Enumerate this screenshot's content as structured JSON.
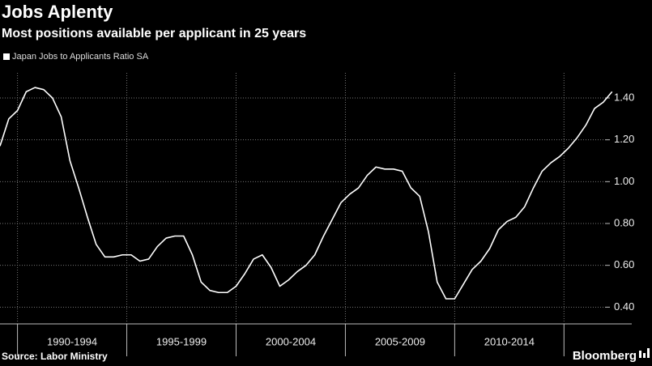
{
  "chart_data": {
    "type": "line",
    "title": "Jobs Aplenty",
    "subtitle": "Most positions available per applicant in 25 years",
    "source": "Source: Labor Ministry",
    "brand": "Bloomberg",
    "grid": true,
    "legend": "top-left",
    "x": [
      1989.2,
      1989.6,
      1990.0,
      1990.4,
      1990.8,
      1991.2,
      1991.6,
      1992.0,
      1992.4,
      1992.8,
      1993.2,
      1993.6,
      1994.0,
      1994.4,
      1994.8,
      1995.2,
      1995.6,
      1996.0,
      1996.4,
      1996.8,
      1997.2,
      1997.6,
      1998.0,
      1998.4,
      1998.8,
      1999.2,
      1999.6,
      2000.0,
      2000.4,
      2000.8,
      2001.2,
      2001.6,
      2002.0,
      2002.4,
      2002.8,
      2003.2,
      2003.6,
      2004.0,
      2004.4,
      2004.8,
      2005.2,
      2005.6,
      2006.0,
      2006.4,
      2006.8,
      2007.2,
      2007.6,
      2008.0,
      2008.4,
      2008.8,
      2009.2,
      2009.6,
      2010.0,
      2010.4,
      2010.8,
      2011.2,
      2011.6,
      2012.0,
      2012.4,
      2012.8,
      2013.2,
      2013.6,
      2014.0,
      2014.4,
      2014.8,
      2015.2,
      2015.6,
      2016.0,
      2016.4,
      2016.8,
      2017.2
    ],
    "series": [
      {
        "name": "Japan Jobs to Applicants Ratio SA",
        "color": "#ffffff",
        "values": [
          1.17,
          1.3,
          1.34,
          1.43,
          1.45,
          1.44,
          1.4,
          1.31,
          1.1,
          0.97,
          0.83,
          0.7,
          0.64,
          0.64,
          0.65,
          0.65,
          0.62,
          0.63,
          0.69,
          0.73,
          0.74,
          0.74,
          0.65,
          0.52,
          0.48,
          0.47,
          0.47,
          0.5,
          0.56,
          0.63,
          0.65,
          0.59,
          0.5,
          0.53,
          0.57,
          0.6,
          0.65,
          0.74,
          0.82,
          0.9,
          0.94,
          0.97,
          1.03,
          1.07,
          1.06,
          1.06,
          1.05,
          0.97,
          0.93,
          0.76,
          0.52,
          0.44,
          0.44,
          0.51,
          0.58,
          0.62,
          0.68,
          0.77,
          0.81,
          0.83,
          0.88,
          0.97,
          1.05,
          1.09,
          1.12,
          1.16,
          1.21,
          1.27,
          1.35,
          1.38,
          1.43
        ]
      }
    ],
    "xlim": [
      1989.2,
      2018.1
    ],
    "xticks": [
      1990,
      1995,
      2000,
      2005,
      2010,
      2015
    ],
    "periods": [
      {
        "label": "1990-1994",
        "start": 1990,
        "end": 1995
      },
      {
        "label": "1995-1999",
        "start": 1995,
        "end": 2000
      },
      {
        "label": "2000-2004",
        "start": 2000,
        "end": 2005
      },
      {
        "label": "2005-2009",
        "start": 2005,
        "end": 2010
      },
      {
        "label": "2010-2014",
        "start": 2010,
        "end": 2015
      }
    ],
    "ylim": [
      0.32,
      1.52
    ],
    "yticks": [
      {
        "value": 0.4,
        "label": "0.40"
      },
      {
        "value": 0.6,
        "label": "0.60"
      },
      {
        "value": 0.8,
        "label": "0.80"
      },
      {
        "value": 1.0,
        "label": "1.00"
      },
      {
        "value": 1.2,
        "label": "1.20"
      },
      {
        "value": 1.4,
        "label": "1.40"
      }
    ]
  }
}
